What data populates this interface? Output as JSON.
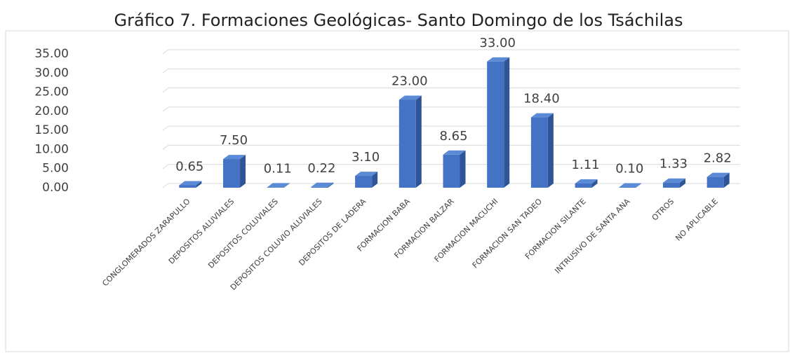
{
  "chart_data": {
    "type": "bar3d",
    "title": "Gráfico 7.  Formaciones Geológicas- Santo Domingo de los Tsáchilas",
    "categories": [
      "CONGLOMERADOS ZARAPULLO",
      "DEPOSITOS ALUVIALES",
      "DEPOSITOS COLUVIALES",
      "DEPOSITOS COLUVIO ALUVIALES",
      "DEPOSITOS DE LADERA",
      "FORMACION BABA",
      "FORMACION BALZAR",
      "FORMACION MACUCHI",
      "FORMACION SAN TADEO",
      "FORMACION SILANTE",
      "INTRUSIVO DE SANTA ANA",
      "OTROS",
      "NO APLICABLE"
    ],
    "values": [
      0.65,
      7.5,
      0.11,
      0.22,
      3.1,
      23,
      8.65,
      33,
      18.4,
      1.11,
      0.1,
      1.33,
      2.82
    ],
    "value_labels": [
      "0.65",
      "7.50",
      "0.11",
      "0.22",
      "3.10",
      "23.00",
      "8.65",
      "33.00",
      "18.40",
      "1.11",
      "0.10",
      "1.33",
      "2.82"
    ],
    "color": "#4472c4",
    "ylim": [
      0,
      35
    ],
    "yticks": [
      {
        "value": 0,
        "label": "0.00"
      },
      {
        "value": 5,
        "label": "5.00"
      },
      {
        "value": 10,
        "label": "10.00"
      },
      {
        "value": 15,
        "label": "15.00"
      },
      {
        "value": 20,
        "label": "20.00"
      },
      {
        "value": 25,
        "label": "25.00"
      },
      {
        "value": 30,
        "label": "30.00"
      },
      {
        "value": 35,
        "label": "35.00"
      }
    ],
    "grid": true
  }
}
